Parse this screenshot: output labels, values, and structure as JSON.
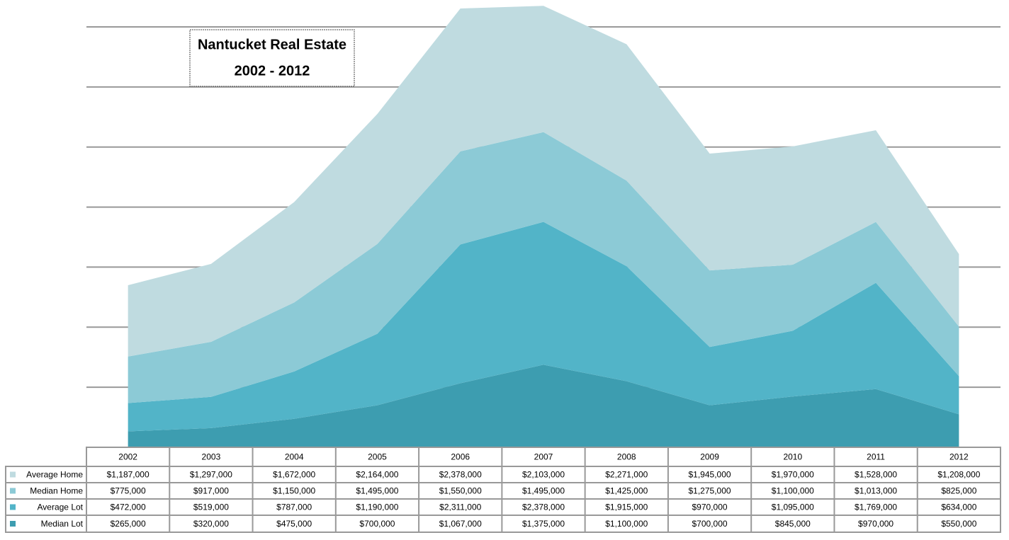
{
  "chart_data": {
    "type": "stacked-area",
    "title": "Nantucket Real Estate",
    "subtitle": "2002 - 2012",
    "categories": [
      "2002",
      "2003",
      "2004",
      "2005",
      "2006",
      "2007",
      "2008",
      "2009",
      "2010",
      "2011",
      "2012"
    ],
    "ylim": [
      0,
      7000000
    ],
    "yticks": [
      1000000,
      2000000,
      3000000,
      4000000,
      5000000,
      6000000,
      7000000
    ],
    "grid": true,
    "series": [
      {
        "name": "Average Home",
        "color": "#bfdbe0",
        "values": [
          1187000,
          1297000,
          1672000,
          2164000,
          2378000,
          2103000,
          2271000,
          1945000,
          1970000,
          1528000,
          1208000
        ],
        "value_labels": [
          "$1,187,000",
          "$1,297,000",
          "$1,672,000",
          "$2,164,000",
          "$2,378,000",
          "$2,103,000",
          "$2,271,000",
          "$1,945,000",
          "$1,970,000",
          "$1,528,000",
          "$1,208,000"
        ]
      },
      {
        "name": "Median Home",
        "color": "#8ccad6",
        "values": [
          775000,
          917000,
          1150000,
          1495000,
          1550000,
          1495000,
          1425000,
          1275000,
          1100000,
          1013000,
          825000
        ],
        "value_labels": [
          "$775,000",
          "$917,000",
          "$1,150,000",
          "$1,495,000",
          "$1,550,000",
          "$1,495,000",
          "$1,425,000",
          "$1,275,000",
          "$1,100,000",
          "$1,013,000",
          "$825,000"
        ]
      },
      {
        "name": "Average Lot",
        "color": "#52b4c8",
        "values": [
          472000,
          519000,
          787000,
          1190000,
          2311000,
          2378000,
          1915000,
          970000,
          1095000,
          1769000,
          634000
        ],
        "value_labels": [
          "$472,000",
          "$519,000",
          "$787,000",
          "$1,190,000",
          "$2,311,000",
          "$2,378,000",
          "$1,915,000",
          "$970,000",
          "$1,095,000",
          "$1,769,000",
          "$634,000"
        ]
      },
      {
        "name": "Median Lot",
        "color": "#3d9db0",
        "values": [
          265000,
          320000,
          475000,
          700000,
          1067000,
          1375000,
          1100000,
          700000,
          845000,
          970000,
          550000
        ],
        "value_labels": [
          "$265,000",
          "$320,000",
          "$475,000",
          "$700,000",
          "$1,067,000",
          "$1,375,000",
          "$1,100,000",
          "$700,000",
          "$845,000",
          "$970,000",
          "$550,000"
        ]
      }
    ]
  }
}
